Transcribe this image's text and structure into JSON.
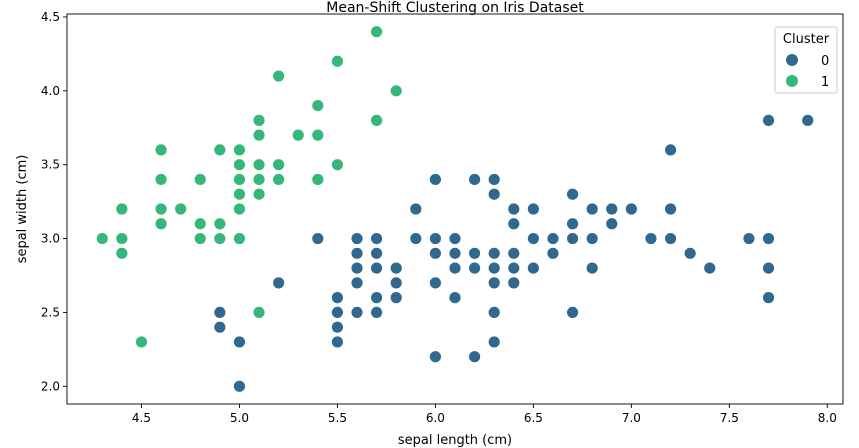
{
  "chart_data": {
    "type": "scatter",
    "title": "Mean-Shift Clustering on Iris Dataset",
    "xlabel": "sepal length (cm)",
    "ylabel": "sepal width (cm)",
    "xlim": [
      4.12,
      8.08
    ],
    "ylim": [
      1.88,
      4.52
    ],
    "xticks": [
      "4.5",
      "5.0",
      "5.5",
      "6.0",
      "6.5",
      "7.0",
      "7.5",
      "8.0"
    ],
    "yticks": [
      "2.0",
      "2.5",
      "3.0",
      "3.5",
      "4.0",
      "4.5"
    ],
    "grid": false,
    "legend": {
      "title": "Cluster",
      "position": "top-right",
      "entries": [
        "0",
        "1"
      ]
    },
    "series": [
      {
        "name": "0",
        "color": "#31688e",
        "points": [
          [
            5.4,
            3.0
          ],
          [
            5.2,
            2.7
          ],
          [
            4.9,
            2.5
          ],
          [
            4.9,
            2.4
          ],
          [
            5.0,
            2.3
          ],
          [
            5.0,
            2.0
          ],
          [
            5.5,
            2.6
          ],
          [
            5.5,
            2.5
          ],
          [
            5.5,
            2.4
          ],
          [
            5.5,
            2.3
          ],
          [
            5.6,
            3.0
          ],
          [
            5.6,
            2.9
          ],
          [
            5.6,
            2.8
          ],
          [
            5.6,
            2.7
          ],
          [
            5.6,
            2.5
          ],
          [
            5.7,
            3.0
          ],
          [
            5.7,
            2.9
          ],
          [
            5.7,
            2.8
          ],
          [
            5.7,
            2.6
          ],
          [
            5.7,
            2.5
          ],
          [
            5.8,
            2.8
          ],
          [
            5.8,
            2.7
          ],
          [
            5.8,
            2.6
          ],
          [
            5.9,
            3.2
          ],
          [
            5.9,
            3.0
          ],
          [
            6.0,
            3.4
          ],
          [
            6.0,
            3.0
          ],
          [
            6.0,
            2.9
          ],
          [
            6.0,
            2.7
          ],
          [
            6.0,
            2.2
          ],
          [
            6.1,
            3.0
          ],
          [
            6.1,
            2.9
          ],
          [
            6.1,
            2.8
          ],
          [
            6.1,
            2.6
          ],
          [
            6.2,
            3.4
          ],
          [
            6.2,
            2.9
          ],
          [
            6.2,
            2.8
          ],
          [
            6.2,
            2.2
          ],
          [
            6.3,
            3.4
          ],
          [
            6.3,
            3.3
          ],
          [
            6.3,
            2.9
          ],
          [
            6.3,
            2.8
          ],
          [
            6.3,
            2.7
          ],
          [
            6.3,
            2.5
          ],
          [
            6.3,
            2.3
          ],
          [
            6.4,
            3.2
          ],
          [
            6.4,
            3.1
          ],
          [
            6.4,
            2.9
          ],
          [
            6.4,
            2.8
          ],
          [
            6.4,
            2.7
          ],
          [
            6.5,
            3.2
          ],
          [
            6.5,
            3.0
          ],
          [
            6.5,
            2.8
          ],
          [
            6.6,
            3.0
          ],
          [
            6.6,
            2.9
          ],
          [
            6.7,
            3.3
          ],
          [
            6.7,
            3.1
          ],
          [
            6.7,
            3.0
          ],
          [
            6.7,
            2.5
          ],
          [
            6.8,
            3.2
          ],
          [
            6.8,
            3.0
          ],
          [
            6.8,
            2.8
          ],
          [
            6.9,
            3.2
          ],
          [
            6.9,
            3.1
          ],
          [
            7.0,
            3.2
          ],
          [
            7.1,
            3.0
          ],
          [
            7.2,
            3.6
          ],
          [
            7.2,
            3.2
          ],
          [
            7.2,
            3.0
          ],
          [
            7.3,
            2.9
          ],
          [
            7.4,
            2.8
          ],
          [
            7.6,
            3.0
          ],
          [
            7.7,
            3.8
          ],
          [
            7.7,
            3.0
          ],
          [
            7.7,
            2.8
          ],
          [
            7.7,
            2.6
          ],
          [
            7.9,
            3.8
          ]
        ]
      },
      {
        "name": "1",
        "color": "#35b779",
        "points": [
          [
            4.3,
            3.0
          ],
          [
            4.4,
            3.2
          ],
          [
            4.4,
            3.0
          ],
          [
            4.4,
            2.9
          ],
          [
            4.5,
            2.3
          ],
          [
            4.6,
            3.6
          ],
          [
            4.6,
            3.4
          ],
          [
            4.6,
            3.2
          ],
          [
            4.6,
            3.1
          ],
          [
            4.7,
            3.2
          ],
          [
            4.8,
            3.4
          ],
          [
            4.8,
            3.1
          ],
          [
            4.8,
            3.0
          ],
          [
            4.9,
            3.6
          ],
          [
            4.9,
            3.1
          ],
          [
            4.9,
            3.0
          ],
          [
            5.0,
            3.6
          ],
          [
            5.0,
            3.5
          ],
          [
            5.0,
            3.4
          ],
          [
            5.0,
            3.3
          ],
          [
            5.0,
            3.2
          ],
          [
            5.0,
            3.0
          ],
          [
            5.1,
            3.8
          ],
          [
            5.1,
            3.7
          ],
          [
            5.1,
            3.5
          ],
          [
            5.1,
            3.4
          ],
          [
            5.1,
            3.3
          ],
          [
            5.1,
            2.5
          ],
          [
            5.2,
            4.1
          ],
          [
            5.2,
            3.5
          ],
          [
            5.2,
            3.4
          ],
          [
            5.3,
            3.7
          ],
          [
            5.4,
            3.9
          ],
          [
            5.4,
            3.7
          ],
          [
            5.4,
            3.4
          ],
          [
            5.5,
            4.2
          ],
          [
            5.5,
            3.5
          ],
          [
            5.7,
            4.4
          ],
          [
            5.7,
            3.8
          ],
          [
            5.8,
            4.0
          ]
        ]
      }
    ]
  }
}
